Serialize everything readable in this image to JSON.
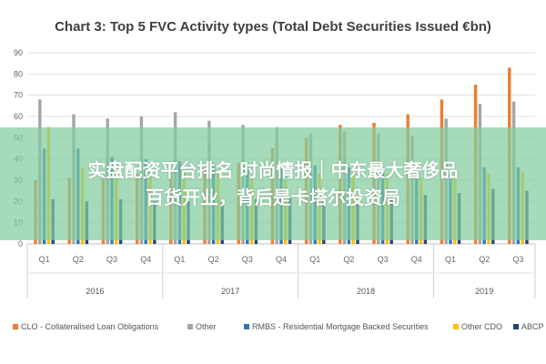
{
  "chart_data": {
    "type": "bar",
    "title": "Chart 3: Top 5 FVC Activity types (Total Debt Securities Issued €bn)",
    "ylim": [
      0,
      90
    ],
    "yticks": [
      0,
      10,
      20,
      30,
      40,
      50,
      60,
      70,
      80,
      90
    ],
    "categories": [
      "Q1",
      "Q2",
      "Q3",
      "Q4",
      "Q1",
      "Q2",
      "Q3",
      "Q4",
      "Q1",
      "Q2",
      "Q3",
      "Q4",
      "Q1",
      "Q2",
      "Q3"
    ],
    "groups": [
      {
        "label": "2016",
        "count": 4
      },
      {
        "label": "2017",
        "count": 4
      },
      {
        "label": "2018",
        "count": 4
      },
      {
        "label": "2019",
        "count": 3
      }
    ],
    "series": [
      {
        "name": "CLO - Collateralised Loan Obligations",
        "color": "#ED7D31",
        "values": [
          30,
          31,
          32,
          33,
          35,
          36,
          38,
          45,
          50,
          56,
          57,
          61,
          68,
          75,
          83
        ]
      },
      {
        "name": "Other",
        "color": "#A5A5A5",
        "values": [
          68,
          61,
          59,
          60,
          62,
          58,
          56,
          55,
          52,
          53,
          52,
          51,
          59,
          66,
          67
        ]
      },
      {
        "name": "RMBS - Residential Mortgage Backed Securities",
        "color": "#2E75B6",
        "values": [
          45,
          45,
          41,
          40,
          39,
          38,
          38,
          37,
          37,
          36,
          36,
          34,
          33,
          36,
          36
        ]
      },
      {
        "name": "Other CDO",
        "color": "#FFC000",
        "values": [
          55,
          36,
          36,
          34,
          35,
          33,
          31,
          30,
          33,
          34,
          33,
          31,
          32,
          33,
          34
        ]
      },
      {
        "name": "ABCP",
        "color": "#264478",
        "values": [
          21,
          20,
          21,
          20,
          20,
          20,
          21,
          22,
          21,
          20,
          22,
          23,
          24,
          26,
          25
        ]
      }
    ],
    "legend_position": "bottom",
    "grid": true
  },
  "overlay": {
    "line1": "实盘配资平台排名  时尚情报｜中东最大奢侈品",
    "line2": "百货开业，背后是卡塔尔投资局"
  }
}
